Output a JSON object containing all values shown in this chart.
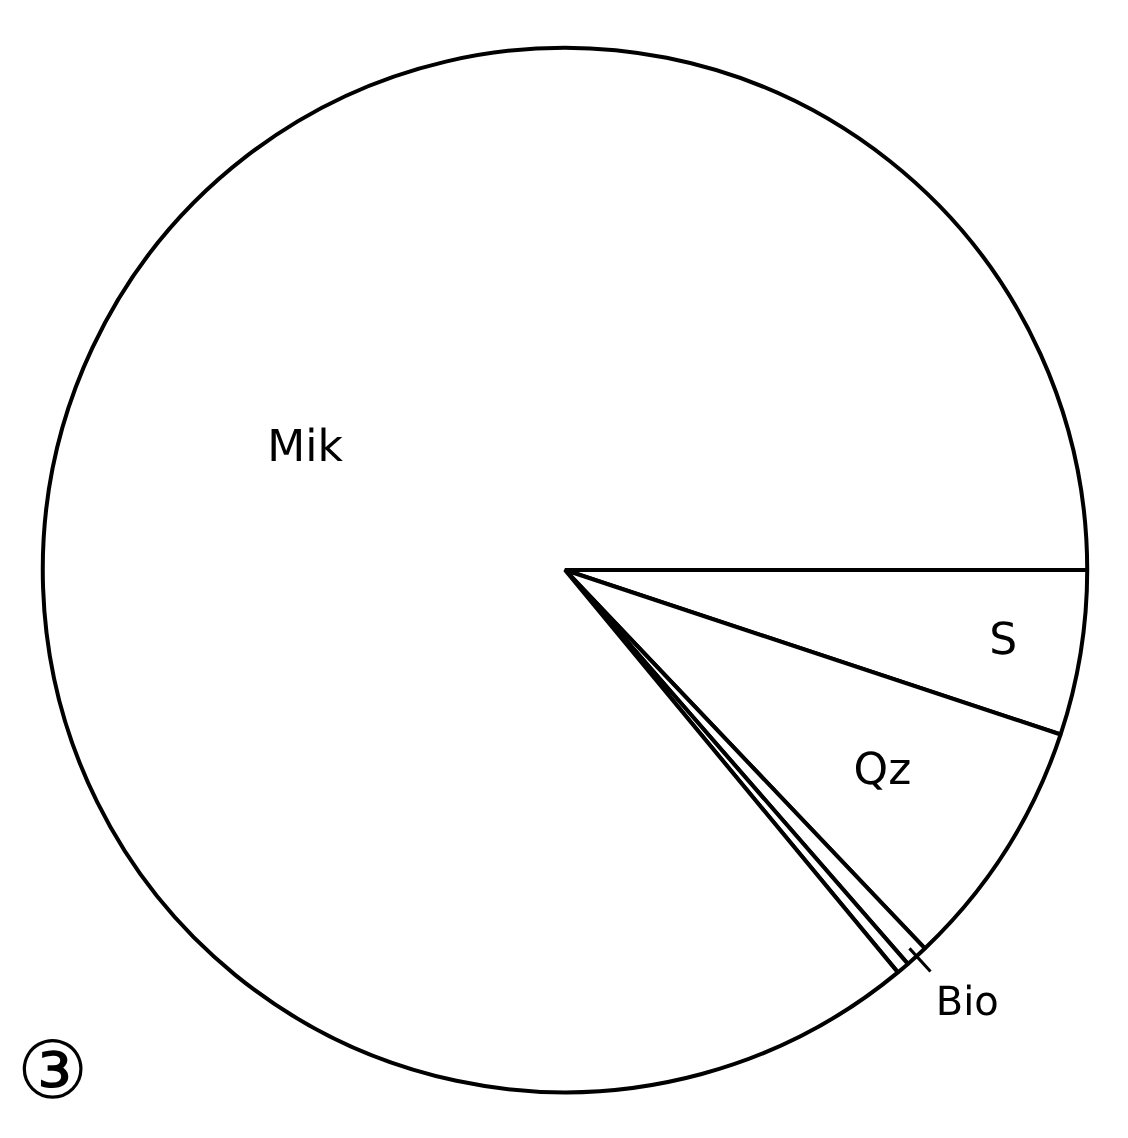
{
  "chart_data": {
    "type": "pie",
    "categories": [
      "S",
      "Qz",
      "Bio",
      null,
      "Mik"
    ],
    "values": [
      5.1,
      7.8,
      0.7,
      0.4,
      86.0
    ],
    "colors": [
      "#ffffff",
      "#ffffff",
      "#ffffff",
      "#ffffff",
      "#ffffff"
    ],
    "annotations": [
      "③"
    ]
  }
}
